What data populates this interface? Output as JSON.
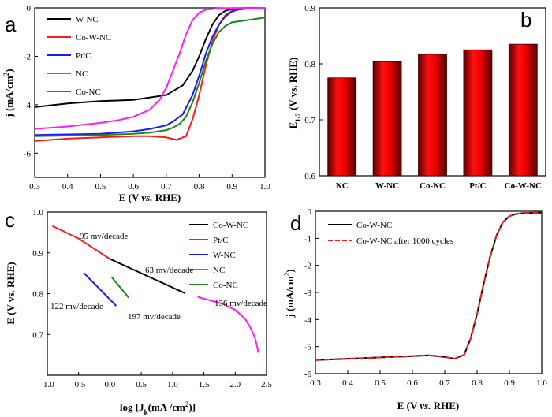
{
  "chart_data": [
    {
      "panel": "a",
      "type": "line",
      "xlabel": "E (V vs. RHE)",
      "ylabel": "j (mA/cm²)",
      "xlim": [
        0.3,
        1.0
      ],
      "ylim": [
        -7,
        0
      ],
      "xticks": [
        "0.3",
        "0.4",
        "0.5",
        "0.6",
        "0.7",
        "0.8",
        "0.9",
        "1.0"
      ],
      "yticks": [
        "0",
        "-2",
        "-4",
        "-6"
      ],
      "legend": "top-left",
      "series": [
        {
          "name": "W-NC",
          "color": "#000000",
          "x": [
            0.3,
            0.4,
            0.5,
            0.6,
            0.7,
            0.75,
            0.78,
            0.8,
            0.82,
            0.84,
            0.86,
            0.88,
            0.9,
            0.92,
            0.95,
            1.0
          ],
          "y": [
            -4.1,
            -3.95,
            -3.85,
            -3.8,
            -3.6,
            -3.2,
            -2.6,
            -2.0,
            -1.3,
            -0.7,
            -0.3,
            -0.12,
            -0.05,
            -0.02,
            0,
            0
          ]
        },
        {
          "name": "Co-W-NC",
          "color": "#ff1a1a",
          "x": [
            0.3,
            0.4,
            0.5,
            0.6,
            0.65,
            0.7,
            0.73,
            0.76,
            0.78,
            0.8,
            0.82,
            0.84,
            0.86,
            0.88,
            0.9,
            0.92,
            0.95,
            1.0
          ],
          "y": [
            -5.5,
            -5.4,
            -5.35,
            -5.3,
            -5.3,
            -5.35,
            -5.45,
            -5.3,
            -4.6,
            -3.6,
            -2.4,
            -1.4,
            -0.7,
            -0.3,
            -0.12,
            -0.05,
            -0.02,
            0
          ]
        },
        {
          "name": "Pt/C",
          "color": "#1a1aff",
          "x": [
            0.3,
            0.5,
            0.6,
            0.65,
            0.7,
            0.72,
            0.75,
            0.78,
            0.8,
            0.82,
            0.84,
            0.86,
            0.88,
            0.9,
            0.92,
            0.95,
            1.0
          ],
          "y": [
            -5.25,
            -5.2,
            -5.1,
            -5.0,
            -4.85,
            -4.7,
            -4.4,
            -3.6,
            -2.8,
            -1.9,
            -1.2,
            -0.7,
            -0.35,
            -0.15,
            -0.07,
            -0.02,
            0
          ]
        },
        {
          "name": "NC",
          "color": "#ff1aff",
          "x": [
            0.3,
            0.4,
            0.5,
            0.55,
            0.6,
            0.65,
            0.68,
            0.7,
            0.72,
            0.74,
            0.76,
            0.78,
            0.8,
            0.82,
            0.85,
            0.9,
            1.0
          ],
          "y": [
            -5.0,
            -4.9,
            -4.75,
            -4.65,
            -4.5,
            -4.2,
            -3.8,
            -3.3,
            -2.6,
            -1.9,
            -1.1,
            -0.5,
            -0.2,
            -0.08,
            -0.03,
            -0.01,
            0
          ]
        },
        {
          "name": "Co-NC",
          "color": "#1a8a1a",
          "x": [
            0.3,
            0.5,
            0.6,
            0.65,
            0.7,
            0.72,
            0.74,
            0.76,
            0.78,
            0.8,
            0.82,
            0.84,
            0.86,
            0.88,
            0.9,
            0.95,
            1.0
          ],
          "y": [
            -5.3,
            -5.25,
            -5.2,
            -5.15,
            -5.05,
            -4.95,
            -4.8,
            -4.5,
            -3.9,
            -3.1,
            -2.2,
            -1.5,
            -1.0,
            -0.75,
            -0.6,
            -0.5,
            -0.4
          ]
        }
      ]
    },
    {
      "panel": "b",
      "type": "bar",
      "ylabel": "E1/2 (V vs. RHE)",
      "ylim": [
        0.6,
        0.9
      ],
      "yticks": [
        "0.6",
        "0.7",
        "0.8",
        "0.9"
      ],
      "color": "#cc0000",
      "categories": [
        "NC",
        "W-NC",
        "Co-NC",
        "Pt/C",
        "Co-W-NC"
      ],
      "values": [
        0.775,
        0.804,
        0.817,
        0.825,
        0.835
      ]
    },
    {
      "panel": "c",
      "type": "line",
      "xlabel": "log [Jk(mA /cm²)]",
      "ylabel": "E (V vs. RHE)",
      "xlim": [
        -1.0,
        2.5
      ],
      "ylim": [
        0.6,
        1.0
      ],
      "xticks": [
        "-1.0",
        "-0.5",
        "0.0",
        "0.5",
        "1.0",
        "1.5",
        "2.0",
        "2.5"
      ],
      "yticks": [
        "1.0",
        "0.9",
        "0.8",
        "0.7"
      ],
      "legend": "right",
      "series": [
        {
          "name": "Co-W-NC",
          "color": "#000000",
          "x": [
            0.0,
            1.2
          ],
          "y": [
            0.885,
            0.801
          ]
        },
        {
          "name": "Pt/C",
          "color": "#ff1a1a",
          "x": [
            -0.92,
            -0.5,
            0.0
          ],
          "y": [
            0.966,
            0.935,
            0.885
          ]
        },
        {
          "name": "W-NC",
          "color": "#1a1aff",
          "x": [
            -0.42,
            0.1
          ],
          "y": [
            0.851,
            0.77
          ]
        },
        {
          "name": "NC",
          "color": "#ff1aff",
          "x": [
            1.4,
            1.8,
            2.0,
            2.15,
            2.25,
            2.32,
            2.37
          ],
          "y": [
            0.792,
            0.775,
            0.76,
            0.74,
            0.715,
            0.69,
            0.655
          ]
        },
        {
          "name": "Co-NC",
          "color": "#1a8a1a",
          "x": [
            0.03,
            0.3
          ],
          "y": [
            0.84,
            0.79
          ]
        }
      ],
      "annotations": [
        "95 mv/decade",
        "63 mv/decade",
        "122 mv/decade",
        "197 mv/decade",
        "136 mv/decade"
      ]
    },
    {
      "panel": "d",
      "type": "line",
      "xlabel": "E (V vs. RHE)",
      "ylabel": "j (mA/cm²)",
      "xlim": [
        0.3,
        1.0
      ],
      "ylim": [
        -6,
        0
      ],
      "xticks": [
        "0.3",
        "0.4",
        "0.5",
        "0.6",
        "0.7",
        "0.8",
        "0.9",
        "1.0"
      ],
      "yticks": [
        "0",
        "-1",
        "-2",
        "-3",
        "-4",
        "-5",
        "-6"
      ],
      "legend": "top-left",
      "series": [
        {
          "name": "Co-W-NC",
          "color": "#000000",
          "style": "solid",
          "x": [
            0.3,
            0.4,
            0.5,
            0.6,
            0.65,
            0.7,
            0.73,
            0.76,
            0.78,
            0.8,
            0.82,
            0.84,
            0.86,
            0.88,
            0.9,
            0.92,
            0.95,
            1.0
          ],
          "y": [
            -5.5,
            -5.45,
            -5.4,
            -5.35,
            -5.32,
            -5.38,
            -5.45,
            -5.3,
            -4.7,
            -3.8,
            -2.7,
            -1.7,
            -0.9,
            -0.4,
            -0.18,
            -0.1,
            -0.06,
            -0.05
          ]
        },
        {
          "name": "Co-W-NC after 1000 cycles",
          "color": "#ff1a1a",
          "style": "dashed",
          "x": [
            0.3,
            0.4,
            0.5,
            0.6,
            0.65,
            0.7,
            0.73,
            0.76,
            0.78,
            0.8,
            0.82,
            0.84,
            0.86,
            0.88,
            0.9,
            0.92,
            0.95,
            1.0
          ],
          "y": [
            -5.5,
            -5.45,
            -5.4,
            -5.35,
            -5.32,
            -5.38,
            -5.45,
            -5.3,
            -4.7,
            -3.8,
            -2.7,
            -1.7,
            -0.9,
            -0.4,
            -0.18,
            -0.1,
            -0.06,
            -0.05
          ]
        }
      ]
    }
  ]
}
